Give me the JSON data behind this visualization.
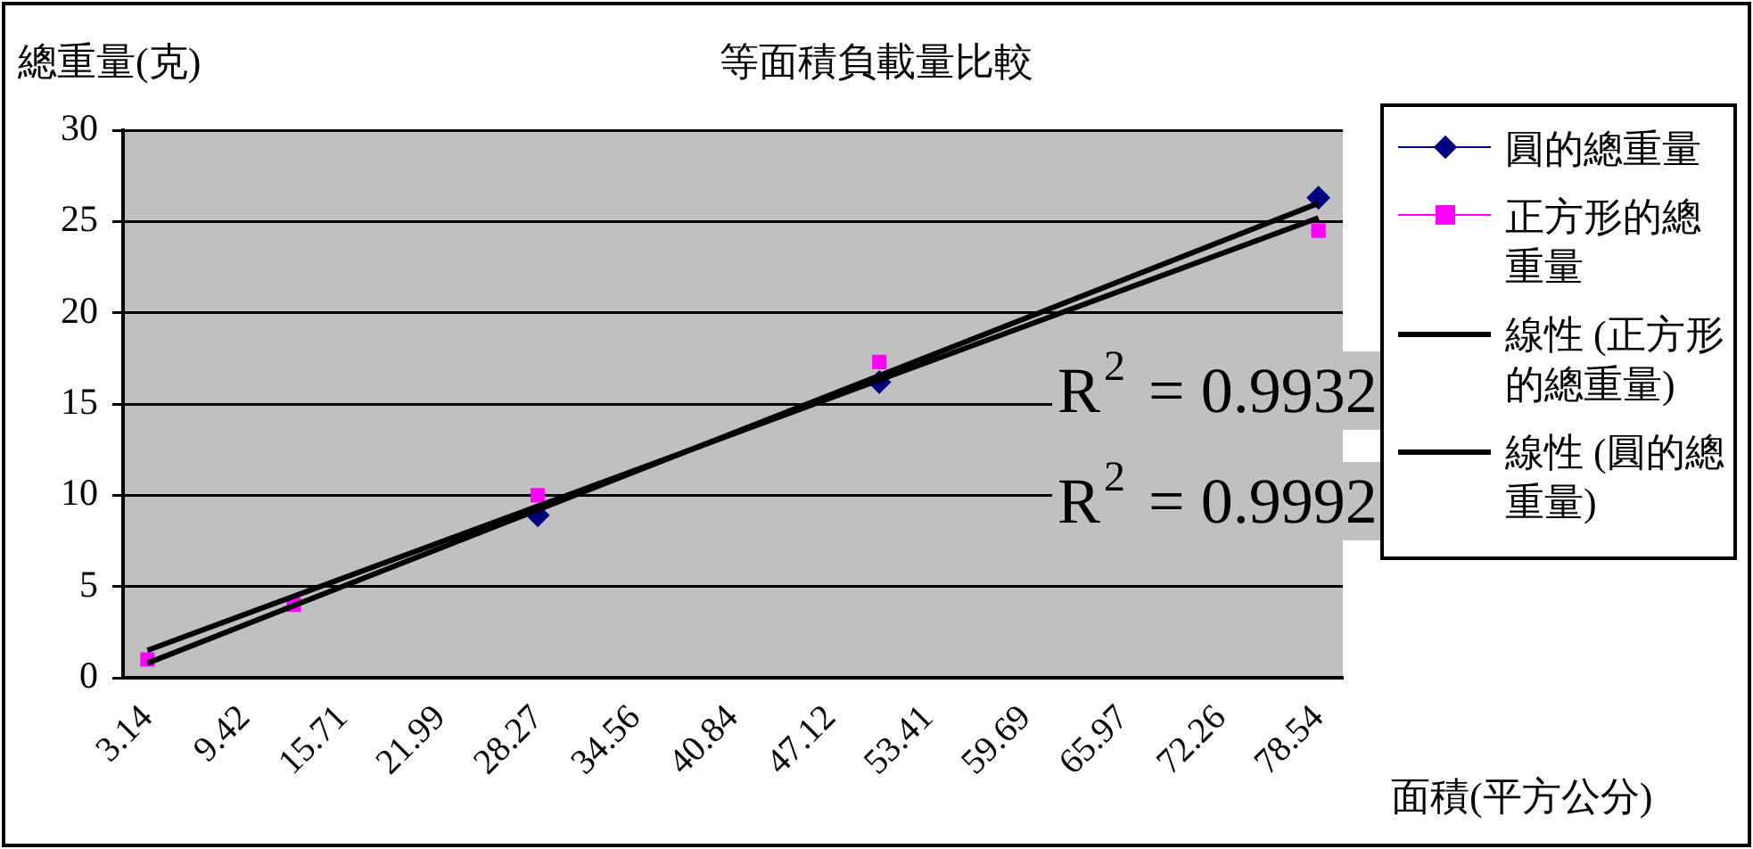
{
  "chart_data": {
    "type": "scatter",
    "title": "等面積負載量比較",
    "xlabel": "面積(平方公分)",
    "ylabel": "總重量(克)",
    "categories": [
      "3.14",
      null,
      "9.42",
      null,
      "15.71",
      null,
      "21.99",
      null,
      "28.27",
      null,
      "34.56",
      null,
      "40.84",
      null,
      "47.12",
      null,
      "53.41",
      null,
      "59.69",
      null,
      "65.97",
      null,
      "72.26",
      null,
      "78.54"
    ],
    "series": [
      {
        "name": "圓的總重量",
        "color": "#000080",
        "marker": "diamond",
        "values": [
          null,
          null,
          null,
          null,
          null,
          null,
          null,
          null,
          8.9,
          null,
          null,
          null,
          null,
          null,
          null,
          16.2,
          null,
          null,
          null,
          null,
          null,
          null,
          null,
          null,
          26.3
        ]
      },
      {
        "name": "正方形的總重量",
        "color": "#ff00ff",
        "marker": "square",
        "values": [
          1,
          null,
          null,
          4,
          null,
          null,
          null,
          null,
          10,
          null,
          null,
          null,
          null,
          null,
          null,
          17.3,
          null,
          null,
          null,
          null,
          null,
          null,
          null,
          null,
          24.5
        ]
      },
      {
        "name": "線性 (正方形的總重量)",
        "type": "line",
        "color": "#000000",
        "marker": "none",
        "values": [
          1.5,
          null,
          null,
          null,
          null,
          null,
          null,
          null,
          null,
          null,
          null,
          null,
          null,
          null,
          null,
          null,
          null,
          null,
          null,
          null,
          null,
          null,
          null,
          null,
          25.2
        ]
      },
      {
        "name": "線性 (圓的總重量)",
        "type": "line",
        "color": "#000000",
        "marker": "none",
        "values": [
          0.8,
          null,
          null,
          null,
          null,
          null,
          null,
          null,
          null,
          null,
          null,
          null,
          null,
          null,
          null,
          null,
          null,
          null,
          null,
          null,
          null,
          null,
          null,
          null,
          26
        ]
      }
    ],
    "ylim": [
      0,
      30
    ],
    "yticks": [
      0,
      5,
      10,
      15,
      20,
      25,
      30
    ],
    "grid": "y",
    "legend": "right",
    "annotations": [
      "R$^{2}$ = 0.9932",
      "R$^{2}$ = 0.9992"
    ]
  }
}
